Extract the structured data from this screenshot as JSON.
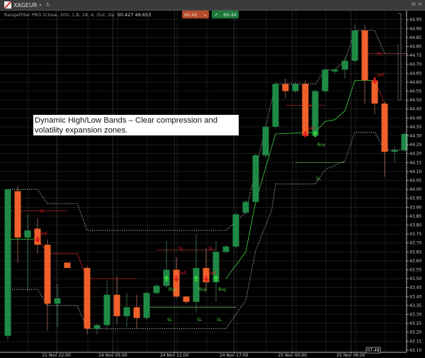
{
  "window": {
    "symbol": "XAGEUR",
    "symbol_caret": "▾",
    "toolbar_button": "h",
    "controls": "⧉ ×"
  },
  "indicator": {
    "label": "RangeFilter PRO (Close, 200, 1.8, 18, 4, Out, Ou",
    "values": "50.427 49.653"
  },
  "trade": {
    "sell_price": "60.42",
    "sell_icon": "arrow-down-right-icon",
    "buy_price": "60.44",
    "buy_icon": "arrow-up-right-icon"
  },
  "annotation": {
    "text": "Dynamic High/Low Bands – Clear compression and volatility expansion zones."
  },
  "colors": {
    "bull": "#1e8a45",
    "bear": "#f0602a",
    "buy_signal": "#3ccf3c",
    "sell_signal": "#e02020",
    "band": "#e8e8e8",
    "grid": "#2a2a2a",
    "background": "#000000"
  },
  "current_time": "07:48",
  "chart_data": {
    "type": "candlestick",
    "price_axis": {
      "range": [
        43.1,
        44.95
      ],
      "ticks": [
        "44.95",
        "44.90",
        "44.85",
        "44.80",
        "44.75",
        "44.70",
        "44.65",
        "44.60",
        "44.55",
        "44.50",
        "44.45",
        "44.40",
        "44.35",
        "44.30",
        "44.25",
        "44.20",
        "44.15",
        "44.10",
        "44.05",
        "44.00",
        "43.95",
        "43.90",
        "43.85",
        "43.80",
        "43.75",
        "43.70",
        "43.65",
        "43.60",
        "43.55",
        "43.50",
        "43.45",
        "43.40",
        "43.35",
        "43.30",
        "43.25",
        "43.20",
        "43.15",
        "43.10"
      ]
    },
    "time_axis": [
      {
        "label": "21 Nov 22:00",
        "bar": 4.9
      },
      {
        "label": "24 Nov 05:00",
        "bar": 10.6
      },
      {
        "label": "24 Nov 11:00",
        "bar": 16.8
      },
      {
        "label": "24 Nov 17:00",
        "bar": 22.8
      },
      {
        "label": "25 Nov 00:00",
        "bar": 28.7
      },
      {
        "label": "25 Nov 06:00",
        "bar": 34.6
      }
    ],
    "grid": true,
    "candles": [
      {
        "bar": 0,
        "o": 43.18,
        "h": 44.0,
        "l": 43.16,
        "c": 44.0
      },
      {
        "bar": 1,
        "o": 43.99,
        "h": 44.02,
        "l": 43.59,
        "c": 43.73
      },
      {
        "bar": 2,
        "o": 43.73,
        "h": 43.86,
        "l": 43.43,
        "c": 43.77
      },
      {
        "bar": 3,
        "o": 43.78,
        "h": 43.84,
        "l": 43.64,
        "c": 43.69
      },
      {
        "bar": 4,
        "o": 43.69,
        "h": 43.72,
        "l": 43.21,
        "c": 43.36
      },
      {
        "bar": 5,
        "o": 43.36,
        "h": 43.47,
        "l": 43.23,
        "c": 43.39
      },
      {
        "bar": 6,
        "o": 43.59,
        "h": 43.59,
        "l": 43.56,
        "c": 43.56
      },
      {
        "bar": 8,
        "o": 43.56,
        "h": 43.57,
        "l": 43.19,
        "c": 43.22
      },
      {
        "bar": 9,
        "o": 43.22,
        "h": 43.25,
        "l": 43.19,
        "c": 43.24
      },
      {
        "bar": 10,
        "o": 43.24,
        "h": 43.49,
        "l": 43.21,
        "c": 43.41
      },
      {
        "bar": 11,
        "o": 43.41,
        "h": 43.51,
        "l": 43.25,
        "c": 43.29
      },
      {
        "bar": 12,
        "o": 43.29,
        "h": 43.42,
        "l": 43.23,
        "c": 43.34
      },
      {
        "bar": 13,
        "o": 43.34,
        "h": 43.41,
        "l": 43.22,
        "c": 43.28
      },
      {
        "bar": 14,
        "o": 43.28,
        "h": 43.43,
        "l": 43.27,
        "c": 43.42
      },
      {
        "bar": 15,
        "o": 43.42,
        "h": 43.47,
        "l": 43.41,
        "c": 43.46
      },
      {
        "bar": 16,
        "o": 43.46,
        "h": 43.71,
        "l": 43.45,
        "c": 43.55
      },
      {
        "bar": 17,
        "o": 43.55,
        "h": 43.62,
        "l": 43.39,
        "c": 43.4
      },
      {
        "bar": 18,
        "o": 43.4,
        "h": 43.4,
        "l": 43.36,
        "c": 43.37
      },
      {
        "bar": 19,
        "o": 43.37,
        "h": 43.75,
        "l": 43.31,
        "c": 43.56
      },
      {
        "bar": 20,
        "o": 43.56,
        "h": 43.67,
        "l": 43.43,
        "c": 43.48
      },
      {
        "bar": 21,
        "o": 43.48,
        "h": 43.71,
        "l": 43.37,
        "c": 43.65
      },
      {
        "bar": 22,
        "o": 43.65,
        "h": 43.69,
        "l": 43.64,
        "c": 43.68
      },
      {
        "bar": 23,
        "o": 43.68,
        "h": 43.87,
        "l": 43.67,
        "c": 43.86
      },
      {
        "bar": 24,
        "o": 43.87,
        "h": 43.94,
        "l": 43.86,
        "c": 43.93
      },
      {
        "bar": 25,
        "o": 43.93,
        "h": 44.2,
        "l": 43.92,
        "c": 44.19
      },
      {
        "bar": 26,
        "o": 44.19,
        "h": 44.36,
        "l": 44.18,
        "c": 44.35
      },
      {
        "bar": 27,
        "o": 44.35,
        "h": 44.6,
        "l": 44.34,
        "c": 44.59
      },
      {
        "bar": 28,
        "o": 44.59,
        "h": 44.62,
        "l": 44.51,
        "c": 44.55
      },
      {
        "bar": 29,
        "o": 44.55,
        "h": 44.6,
        "l": 44.54,
        "c": 44.59
      },
      {
        "bar": 30,
        "o": 44.59,
        "h": 44.61,
        "l": 44.29,
        "c": 44.3
      },
      {
        "bar": 31,
        "o": 44.3,
        "h": 44.56,
        "l": 44.29,
        "c": 44.55
      },
      {
        "bar": 32,
        "o": 44.55,
        "h": 44.68,
        "l": 44.54,
        "c": 44.67
      },
      {
        "bar": 33,
        "o": 44.66,
        "h": 44.68,
        "l": 44.65,
        "c": 44.67
      },
      {
        "bar": 34,
        "o": 44.67,
        "h": 44.74,
        "l": 44.62,
        "c": 44.72
      },
      {
        "bar": 35,
        "o": 44.72,
        "h": 44.92,
        "l": 44.71,
        "c": 44.89
      },
      {
        "bar": 36,
        "o": 44.89,
        "h": 44.92,
        "l": 44.48,
        "c": 44.61
      },
      {
        "bar": 37,
        "o": 44.61,
        "h": 44.62,
        "l": 44.42,
        "c": 44.48
      },
      {
        "bar": 38,
        "o": 44.48,
        "h": 44.49,
        "l": 44.07,
        "c": 44.21
      },
      {
        "bar": 39,
        "o": 44.21,
        "h": 44.24,
        "l": 44.15,
        "c": 44.22
      },
      {
        "bar": 40,
        "o": 44.22,
        "h": 44.32,
        "l": 44.21,
        "c": 44.31
      }
    ],
    "upper_band": [
      [
        0,
        44.0
      ],
      [
        3,
        44.0
      ],
      [
        4,
        43.92
      ],
      [
        7,
        43.92
      ],
      [
        8,
        43.77
      ],
      [
        22,
        43.77
      ],
      [
        24,
        43.87
      ],
      [
        26,
        44.35
      ],
      [
        27,
        44.59
      ],
      [
        31,
        44.59
      ],
      [
        32,
        44.67
      ],
      [
        33,
        44.67
      ],
      [
        34,
        44.72
      ],
      [
        35,
        44.89
      ],
      [
        37,
        44.89
      ],
      [
        38,
        44.76
      ],
      [
        40.3,
        44.76
      ]
    ],
    "lower_band": [
      [
        0,
        43.44
      ],
      [
        3,
        43.44
      ],
      [
        4,
        43.35
      ],
      [
        7,
        43.35
      ],
      [
        8,
        43.22
      ],
      [
        22,
        43.22
      ],
      [
        24,
        43.38
      ],
      [
        25,
        43.66
      ],
      [
        26.6,
        43.88
      ],
      [
        27,
        44.03
      ],
      [
        31,
        44.03
      ],
      [
        32,
        44.11
      ],
      [
        34,
        44.16
      ],
      [
        35,
        44.32
      ],
      [
        37,
        44.32
      ],
      [
        38,
        44.22
      ],
      [
        40.3,
        44.22
      ]
    ],
    "buy_trail": [
      [
        0,
        43.72
      ],
      [
        3,
        43.72
      ]
    ],
    "buy_trail_2": [
      [
        22,
        43.5
      ],
      [
        24,
        43.65
      ],
      [
        25,
        43.93
      ],
      [
        27,
        44.31
      ],
      [
        31,
        44.32
      ],
      [
        32,
        44.38
      ],
      [
        33,
        44.39
      ],
      [
        34,
        44.44
      ],
      [
        35,
        44.61
      ],
      [
        37,
        44.61
      ]
    ],
    "sell_trail": [
      [
        3,
        43.73
      ],
      [
        4,
        43.64
      ],
      [
        7,
        43.64
      ],
      [
        8,
        43.5
      ],
      [
        13,
        43.5
      ]
    ],
    "sell_trail_2": [
      [
        37,
        44.61
      ],
      [
        38,
        44.48
      ]
    ],
    "stop_lines": [
      {
        "side": "sell",
        "from": 0,
        "to": 6,
        "price": 43.88
      },
      {
        "side": "sell",
        "from": 15,
        "to": 21,
        "price": 43.66
      },
      {
        "side": "sell",
        "from": 28,
        "to": 32,
        "price": 44.47
      },
      {
        "side": "sell",
        "from": 36,
        "to": 40,
        "price": 44.76
      },
      {
        "side": "buy",
        "from": 14,
        "to": 23,
        "price": 43.34
      },
      {
        "side": "buy",
        "from": 29,
        "to": 34,
        "price": 44.15
      }
    ],
    "signals": [
      {
        "type": "sell",
        "bar": 3,
        "price": 43.72,
        "label": "Sell",
        "sl_label": "SL",
        "sl_price": 43.88
      },
      {
        "type": "buy",
        "bar": 16,
        "price": 43.5,
        "label": "Buy",
        "sl_label": "SL",
        "sl_price": 43.31
      },
      {
        "type": "sell",
        "bar": 17,
        "price": 43.5,
        "label": "Sell",
        "sl_label": "SL",
        "sl_price": 43.67
      },
      {
        "type": "buy",
        "bar": 19,
        "price": 43.5,
        "label": "Buy",
        "sl_label": "SL",
        "sl_price": 43.31
      },
      {
        "type": "sell",
        "bar": 20,
        "price": 43.5,
        "label": "Sell",
        "sl_label": "SL",
        "sl_price": 43.67
      },
      {
        "type": "buy",
        "bar": 21,
        "price": 43.5,
        "label": "Buy",
        "sl_label": "SL",
        "sl_price": 43.31
      },
      {
        "type": "sell",
        "bar": 30,
        "price": 44.31,
        "label": "Sell",
        "sl_label": "SL",
        "sl_price": 44.47
      },
      {
        "type": "buy",
        "bar": 31,
        "price": 44.31,
        "label": "Buy",
        "sl_label": "SL",
        "sl_price": 44.1
      },
      {
        "type": "sell",
        "bar": 37,
        "price": 44.61,
        "label": "Sell",
        "sl_label": "SL",
        "sl_price": 44.76
      }
    ]
  }
}
